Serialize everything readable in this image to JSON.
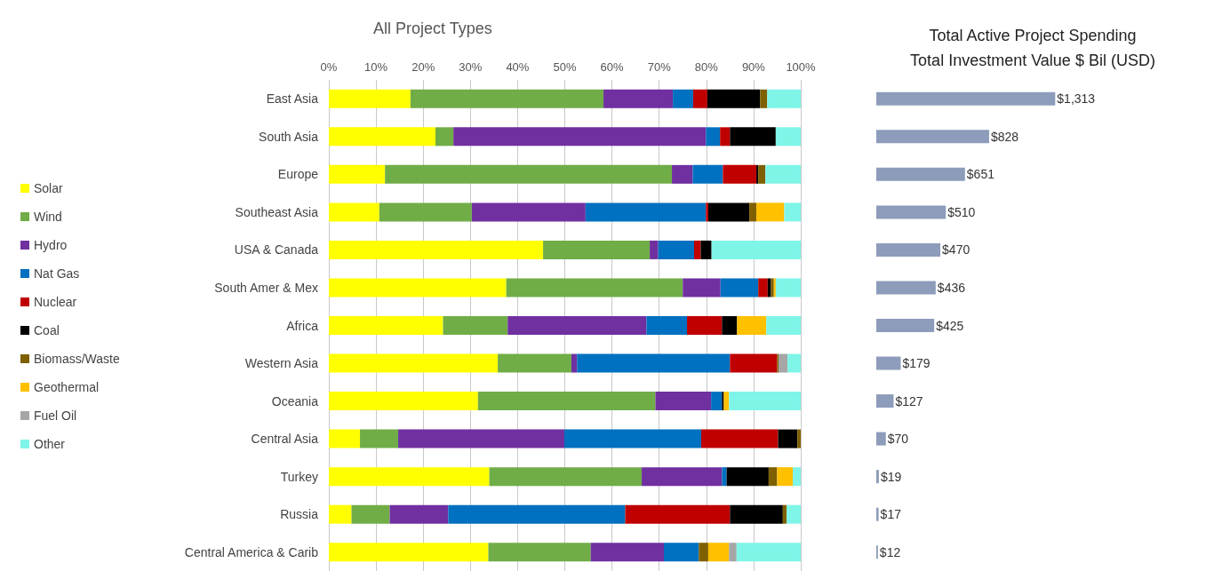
{
  "chart_data": [
    {
      "type": "bar",
      "orientation": "horizontal",
      "stacked": true,
      "title": "All Project Types",
      "categories": [
        "East Asia",
        "South Asia",
        "Europe",
        "Southeast Asia",
        "USA & Canada",
        "South Amer & Mex",
        "Africa",
        "Western Asia",
        "Oceania",
        "Central Asia",
        "Turkey",
        "Russia",
        "Central America & Carib"
      ],
      "series": [
        {
          "name": "Solar",
          "color": "#ffff00",
          "values": [
            17.3,
            22.6,
            11.9,
            10.7,
            45.4,
            37.6,
            24.2,
            35.8,
            31.6,
            6.6,
            34.0,
            4.8,
            33.8
          ]
        },
        {
          "name": "Wind",
          "color": "#70ad47",
          "values": [
            40.9,
            3.8,
            60.8,
            19.6,
            22.6,
            37.4,
            13.7,
            15.6,
            37.6,
            8.1,
            32.3,
            8.1,
            21.7
          ]
        },
        {
          "name": "Hydro",
          "color": "#7030a0",
          "values": [
            14.7,
            53.5,
            4.4,
            24.1,
            1.8,
            8.0,
            29.4,
            1.2,
            11.8,
            35.2,
            17.0,
            12.4,
            15.5
          ]
        },
        {
          "name": "Nat Gas",
          "color": "#0070c0",
          "values": [
            4.3,
            3.0,
            6.4,
            25.5,
            7.6,
            8.0,
            8.6,
            32.4,
            2.3,
            29.0,
            1.0,
            37.5,
            7.4
          ]
        },
        {
          "name": "Nuclear",
          "color": "#c00000",
          "values": [
            3.0,
            2.1,
            7.1,
            0.5,
            1.4,
            2.0,
            7.4,
            10.0,
            0,
            16.3,
            0,
            22.2,
            0
          ]
        },
        {
          "name": "Coal",
          "color": "#000000",
          "values": [
            11.2,
            9.7,
            0.4,
            8.7,
            2.3,
            0.7,
            3.2,
            0,
            0.4,
            4.1,
            8.9,
            11.2,
            0
          ]
        },
        {
          "name": "Biomass/Waste",
          "color": "#7f6000",
          "values": [
            1.5,
            0,
            1.5,
            1.5,
            0,
            0.6,
            0,
            0.3,
            0,
            0.7,
            1.8,
            0.8,
            2.0
          ]
        },
        {
          "name": "Geothermal",
          "color": "#ffc000",
          "values": [
            0,
            0,
            0,
            5.9,
            0,
            0.4,
            6.2,
            0,
            1.1,
            0,
            3.3,
            0,
            4.4
          ]
        },
        {
          "name": "Fuel Oil",
          "color": "#a6a6a6",
          "values": [
            0,
            0,
            0,
            0,
            0,
            0,
            0,
            1.9,
            0,
            0,
            0,
            0,
            1.6
          ]
        },
        {
          "name": "Other",
          "color": "#7ff5e8",
          "values": [
            7.1,
            5.3,
            7.5,
            3.5,
            18.9,
            5.3,
            7.3,
            2.8,
            15.2,
            0,
            1.7,
            3.0,
            13.6
          ]
        }
      ],
      "xlim": [
        0,
        100
      ],
      "xticks": [
        {
          "value": 0,
          "label": "0%"
        },
        {
          "value": 10,
          "label": "10%"
        },
        {
          "value": 20,
          "label": "20%"
        },
        {
          "value": 30,
          "label": "30%"
        },
        {
          "value": 40,
          "label": "40%"
        },
        {
          "value": 50,
          "label": "50%"
        },
        {
          "value": 60,
          "label": "60%"
        },
        {
          "value": 70,
          "label": "70%"
        },
        {
          "value": 80,
          "label": "80%"
        },
        {
          "value": 90,
          "label": "90%"
        },
        {
          "value": 100,
          "label": "100%"
        }
      ],
      "grid": "x",
      "legend": "left"
    },
    {
      "type": "bar",
      "orientation": "horizontal",
      "title": "Total Active Project Spending",
      "subtitle": "Total Investment Value $ Bil (USD)",
      "categories": [
        null,
        null,
        null,
        null,
        null,
        null,
        null,
        null,
        null,
        null,
        null,
        null,
        null
      ],
      "values": [
        1313,
        828,
        651,
        510,
        470,
        436,
        425,
        179,
        127,
        70,
        19,
        17,
        12
      ],
      "value_labels": [
        "$1,313",
        "$828",
        "$651",
        "$510",
        "$470",
        "$436",
        "$425",
        "$179",
        "$127",
        "$70",
        "$19",
        "$17",
        "$12"
      ],
      "color": "#8d9cba",
      "legend": false
    }
  ]
}
